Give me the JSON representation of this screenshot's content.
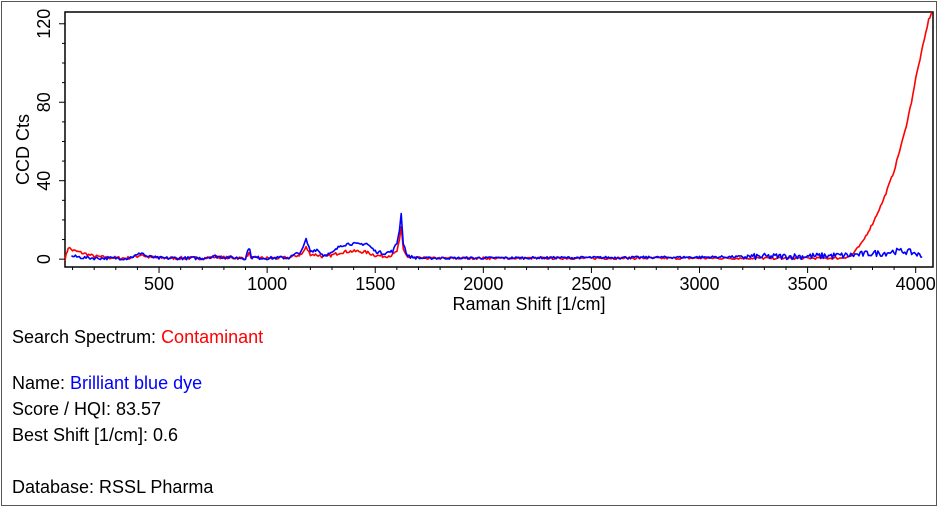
{
  "chart_data": {
    "type": "line",
    "xlabel": "Raman Shift [1/cm]",
    "ylabel": "CCD Cts",
    "xlim": [
      65,
      4080
    ],
    "ylim": [
      -4,
      126
    ],
    "x_ticks": [
      "500",
      "1000",
      "1500",
      "2000",
      "2500",
      "3000",
      "3500",
      "4000"
    ],
    "y_ticks": [
      "0",
      "40",
      "80",
      "120"
    ],
    "grid": false,
    "series": [
      {
        "color": "#ff0000",
        "points": [
          [
            65,
            0
          ],
          [
            80,
            6
          ],
          [
            100,
            4.5
          ],
          [
            150,
            3
          ],
          [
            200,
            1.5
          ],
          [
            260,
            0.8
          ],
          [
            350,
            0.5
          ],
          [
            400,
            1.5
          ],
          [
            420,
            2.5
          ],
          [
            440,
            1.2
          ],
          [
            500,
            0.6
          ],
          [
            700,
            0.5
          ],
          [
            760,
            1.2
          ],
          [
            800,
            0.8
          ],
          [
            900,
            0.5
          ],
          [
            915,
            3
          ],
          [
            930,
            0.6
          ],
          [
            1000,
            0.5
          ],
          [
            1100,
            0.7
          ],
          [
            1160,
            2.5
          ],
          [
            1180,
            6
          ],
          [
            1200,
            2.5
          ],
          [
            1230,
            2.2
          ],
          [
            1260,
            1.2
          ],
          [
            1300,
            2
          ],
          [
            1340,
            3.5
          ],
          [
            1380,
            4
          ],
          [
            1420,
            4
          ],
          [
            1460,
            3.5
          ],
          [
            1500,
            2
          ],
          [
            1540,
            1.5
          ],
          [
            1580,
            2
          ],
          [
            1600,
            4
          ],
          [
            1612,
            9
          ],
          [
            1620,
            16
          ],
          [
            1630,
            5
          ],
          [
            1650,
            1
          ],
          [
            1700,
            0.5
          ],
          [
            2000,
            0.5
          ],
          [
            2500,
            0.5
          ],
          [
            3000,
            0.5
          ],
          [
            3500,
            0.5
          ],
          [
            3650,
            0.5
          ],
          [
            3700,
            1.5
          ],
          [
            3750,
            8
          ],
          [
            3800,
            18
          ],
          [
            3850,
            30
          ],
          [
            3900,
            45
          ],
          [
            3950,
            65
          ],
          [
            3980,
            80
          ],
          [
            4000,
            92
          ],
          [
            4020,
            102
          ],
          [
            4040,
            112
          ],
          [
            4060,
            122
          ],
          [
            4075,
            126
          ]
        ]
      },
      {
        "color": "#0000ff",
        "points": [
          [
            95,
            1.5
          ],
          [
            150,
            0.8
          ],
          [
            200,
            0.5
          ],
          [
            300,
            0.5
          ],
          [
            350,
            0.4
          ],
          [
            400,
            2
          ],
          [
            420,
            3.5
          ],
          [
            440,
            1.5
          ],
          [
            500,
            0.5
          ],
          [
            700,
            0.5
          ],
          [
            760,
            1.5
          ],
          [
            800,
            1
          ],
          [
            900,
            0.5
          ],
          [
            915,
            6
          ],
          [
            930,
            0.8
          ],
          [
            1000,
            0.5
          ],
          [
            1100,
            0.8
          ],
          [
            1160,
            4
          ],
          [
            1180,
            10
          ],
          [
            1200,
            4
          ],
          [
            1230,
            5
          ],
          [
            1260,
            2
          ],
          [
            1300,
            3
          ],
          [
            1340,
            7
          ],
          [
            1380,
            8
          ],
          [
            1420,
            7.5
          ],
          [
            1460,
            8
          ],
          [
            1500,
            4
          ],
          [
            1540,
            3
          ],
          [
            1580,
            4
          ],
          [
            1600,
            8
          ],
          [
            1612,
            15
          ],
          [
            1620,
            23
          ],
          [
            1630,
            8
          ],
          [
            1650,
            1.5
          ],
          [
            1700,
            0.5
          ],
          [
            2000,
            0.6
          ],
          [
            2500,
            0.8
          ],
          [
            3000,
            1
          ],
          [
            3500,
            1.5
          ],
          [
            3700,
            2
          ],
          [
            3750,
            2.5
          ],
          [
            3800,
            3
          ],
          [
            3850,
            3
          ],
          [
            3900,
            4
          ],
          [
            3950,
            4
          ],
          [
            4000,
            3
          ],
          [
            4030,
            1
          ]
        ]
      }
    ]
  },
  "info": {
    "search_label": "Search Spectrum: ",
    "search_value": "Contaminant",
    "name_label": "Name: ",
    "name_value": "Brilliant blue dye",
    "score": "Score / HQI: 83.57",
    "best_shift": "Best Shift [1/cm]: 0.6",
    "database": "Database: RSSL Pharma"
  }
}
